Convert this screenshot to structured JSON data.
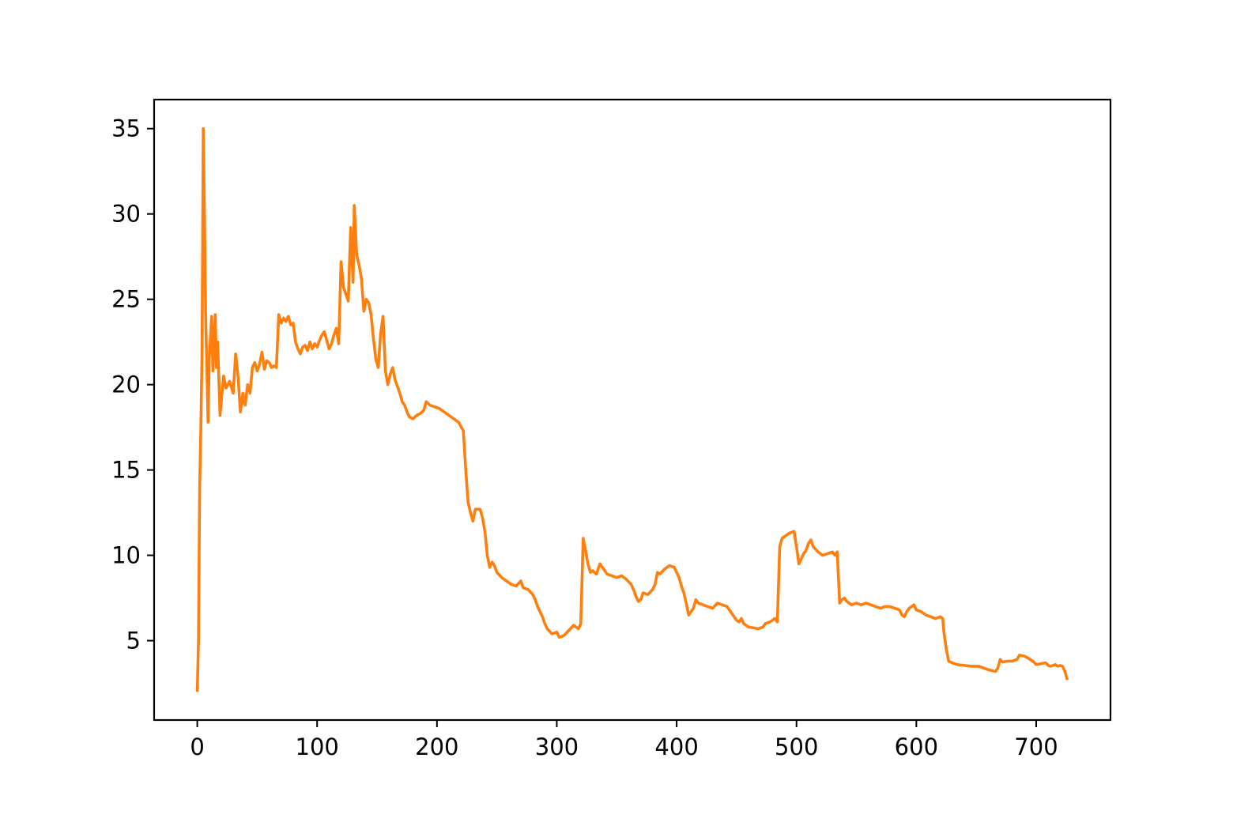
{
  "chart_data": {
    "type": "line",
    "title": "",
    "xlabel": "",
    "ylabel": "",
    "xlim": [
      -36,
      762
    ],
    "ylim": [
      0.35,
      36.7
    ],
    "grid": false,
    "legend": "none",
    "x_ticks": [
      0,
      100,
      200,
      300,
      400,
      500,
      600,
      700
    ],
    "y_ticks": [
      5,
      10,
      15,
      20,
      25,
      30,
      35
    ],
    "x_tick_labels": [
      "0",
      "100",
      "200",
      "300",
      "400",
      "500",
      "600",
      "700"
    ],
    "y_tick_labels": [
      "5",
      "10",
      "15",
      "20",
      "25",
      "30",
      "35"
    ],
    "series": [
      {
        "color": "#ff7f0e",
        "points": [
          [
            0,
            2.0
          ],
          [
            1,
            5.0
          ],
          [
            2,
            14.0
          ],
          [
            3,
            17.5
          ],
          [
            4,
            22.0
          ],
          [
            5,
            35.0
          ],
          [
            6,
            30.0
          ],
          [
            7,
            24.0
          ],
          [
            8,
            21.0
          ],
          [
            9,
            17.8
          ],
          [
            10,
            21.5
          ],
          [
            12,
            24.0
          ],
          [
            13,
            20.8
          ],
          [
            15,
            24.1
          ],
          [
            16,
            21.0
          ],
          [
            17,
            22.5
          ],
          [
            19,
            18.2
          ],
          [
            20,
            19.0
          ],
          [
            22,
            20.5
          ],
          [
            24,
            19.8
          ],
          [
            27,
            20.2
          ],
          [
            30,
            19.5
          ],
          [
            32,
            21.8
          ],
          [
            34,
            20.5
          ],
          [
            36,
            18.4
          ],
          [
            38,
            19.5
          ],
          [
            40,
            18.8
          ],
          [
            42,
            20.0
          ],
          [
            44,
            19.5
          ],
          [
            46,
            21.0
          ],
          [
            48,
            21.3
          ],
          [
            50,
            20.8
          ],
          [
            52,
            21.2
          ],
          [
            54,
            21.9
          ],
          [
            56,
            20.9
          ],
          [
            58,
            21.4
          ],
          [
            60,
            21.3
          ],
          [
            62,
            21.0
          ],
          [
            64,
            21.1
          ],
          [
            66,
            21.0
          ],
          [
            68,
            24.1
          ],
          [
            70,
            23.6
          ],
          [
            72,
            23.9
          ],
          [
            74,
            23.7
          ],
          [
            76,
            24.0
          ],
          [
            78,
            23.5
          ],
          [
            80,
            23.6
          ],
          [
            82,
            22.5
          ],
          [
            84,
            22.1
          ],
          [
            86,
            21.8
          ],
          [
            88,
            22.2
          ],
          [
            90,
            22.3
          ],
          [
            92,
            22.0
          ],
          [
            94,
            22.5
          ],
          [
            96,
            22.1
          ],
          [
            98,
            22.4
          ],
          [
            100,
            22.2
          ],
          [
            102,
            22.6
          ],
          [
            104,
            22.9
          ],
          [
            106,
            23.1
          ],
          [
            108,
            22.6
          ],
          [
            110,
            22.1
          ],
          [
            112,
            22.4
          ],
          [
            114,
            22.9
          ],
          [
            116,
            23.3
          ],
          [
            118,
            22.4
          ],
          [
            120,
            27.2
          ],
          [
            122,
            25.7
          ],
          [
            124,
            25.3
          ],
          [
            126,
            24.9
          ],
          [
            128,
            29.2
          ],
          [
            130,
            26.0
          ],
          [
            131,
            30.5
          ],
          [
            133,
            27.6
          ],
          [
            135,
            27.0
          ],
          [
            137,
            26.2
          ],
          [
            139,
            24.3
          ],
          [
            141,
            25.0
          ],
          [
            143,
            24.8
          ],
          [
            145,
            24.1
          ],
          [
            147,
            22.7
          ],
          [
            149,
            21.5
          ],
          [
            151,
            21.0
          ],
          [
            153,
            23.0
          ],
          [
            155,
            24.0
          ],
          [
            157,
            20.8
          ],
          [
            159,
            20.0
          ],
          [
            161,
            20.6
          ],
          [
            163,
            21.0
          ],
          [
            165,
            20.3
          ],
          [
            167,
            19.9
          ],
          [
            169,
            19.5
          ],
          [
            171,
            19.0
          ],
          [
            173,
            18.8
          ],
          [
            175,
            18.4
          ],
          [
            177,
            18.1
          ],
          [
            180,
            18.0
          ],
          [
            183,
            18.2
          ],
          [
            186,
            18.3
          ],
          [
            189,
            18.5
          ],
          [
            191,
            19.0
          ],
          [
            194,
            18.8
          ],
          [
            198,
            18.7
          ],
          [
            202,
            18.6
          ],
          [
            206,
            18.4
          ],
          [
            210,
            18.2
          ],
          [
            214,
            18.0
          ],
          [
            218,
            17.8
          ],
          [
            222,
            17.3
          ],
          [
            224,
            15.0
          ],
          [
            226,
            13.1
          ],
          [
            228,
            12.5
          ],
          [
            230,
            12.0
          ],
          [
            232,
            12.7
          ],
          [
            236,
            12.7
          ],
          [
            238,
            12.2
          ],
          [
            240,
            11.4
          ],
          [
            242,
            10.0
          ],
          [
            244,
            9.3
          ],
          [
            246,
            9.6
          ],
          [
            248,
            9.4
          ],
          [
            250,
            9.0
          ],
          [
            254,
            8.7
          ],
          [
            258,
            8.5
          ],
          [
            262,
            8.3
          ],
          [
            266,
            8.2
          ],
          [
            270,
            8.5
          ],
          [
            272,
            8.1
          ],
          [
            276,
            8.0
          ],
          [
            280,
            7.7
          ],
          [
            282,
            7.4
          ],
          [
            284,
            7.0
          ],
          [
            288,
            6.4
          ],
          [
            290,
            6.0
          ],
          [
            292,
            5.7
          ],
          [
            296,
            5.4
          ],
          [
            300,
            5.5
          ],
          [
            302,
            5.2
          ],
          [
            306,
            5.3
          ],
          [
            310,
            5.6
          ],
          [
            314,
            5.9
          ],
          [
            318,
            5.7
          ],
          [
            320,
            6.0
          ],
          [
            322,
            11.0
          ],
          [
            324,
            10.3
          ],
          [
            326,
            9.5
          ],
          [
            328,
            9.0
          ],
          [
            330,
            9.1
          ],
          [
            333,
            8.9
          ],
          [
            336,
            9.5
          ],
          [
            338,
            9.3
          ],
          [
            342,
            8.9
          ],
          [
            346,
            8.8
          ],
          [
            350,
            8.7
          ],
          [
            354,
            8.8
          ],
          [
            358,
            8.6
          ],
          [
            362,
            8.3
          ],
          [
            364,
            8.0
          ],
          [
            366,
            7.6
          ],
          [
            368,
            7.3
          ],
          [
            370,
            7.4
          ],
          [
            372,
            7.8
          ],
          [
            376,
            7.7
          ],
          [
            380,
            8.0
          ],
          [
            382,
            8.3
          ],
          [
            384,
            9.0
          ],
          [
            386,
            8.9
          ],
          [
            390,
            9.2
          ],
          [
            394,
            9.4
          ],
          [
            398,
            9.3
          ],
          [
            400,
            9.0
          ],
          [
            402,
            8.7
          ],
          [
            404,
            8.2
          ],
          [
            406,
            7.8
          ],
          [
            408,
            7.2
          ],
          [
            410,
            6.5
          ],
          [
            412,
            6.7
          ],
          [
            414,
            6.9
          ],
          [
            416,
            7.4
          ],
          [
            418,
            7.2
          ],
          [
            422,
            7.1
          ],
          [
            426,
            7.0
          ],
          [
            430,
            6.9
          ],
          [
            434,
            7.2
          ],
          [
            438,
            7.1
          ],
          [
            442,
            7.0
          ],
          [
            444,
            6.8
          ],
          [
            446,
            6.6
          ],
          [
            448,
            6.4
          ],
          [
            450,
            6.2
          ],
          [
            452,
            6.1
          ],
          [
            454,
            6.3
          ],
          [
            456,
            6.0
          ],
          [
            460,
            5.8
          ],
          [
            464,
            5.75
          ],
          [
            468,
            5.7
          ],
          [
            472,
            5.8
          ],
          [
            474,
            6.0
          ],
          [
            478,
            6.1
          ],
          [
            482,
            6.3
          ],
          [
            484,
            6.1
          ],
          [
            486,
            10.5
          ],
          [
            488,
            11.0
          ],
          [
            490,
            11.1
          ],
          [
            494,
            11.3
          ],
          [
            498,
            11.4
          ],
          [
            500,
            10.5
          ],
          [
            502,
            9.5
          ],
          [
            504,
            9.8
          ],
          [
            506,
            10.1
          ],
          [
            508,
            10.3
          ],
          [
            510,
            10.7
          ],
          [
            512,
            10.9
          ],
          [
            514,
            10.5
          ],
          [
            518,
            10.2
          ],
          [
            522,
            10.0
          ],
          [
            526,
            10.1
          ],
          [
            530,
            10.2
          ],
          [
            532,
            10.0
          ],
          [
            534,
            10.2
          ],
          [
            536,
            7.2
          ],
          [
            538,
            7.4
          ],
          [
            540,
            7.5
          ],
          [
            542,
            7.3
          ],
          [
            546,
            7.1
          ],
          [
            550,
            7.2
          ],
          [
            554,
            7.1
          ],
          [
            558,
            7.2
          ],
          [
            562,
            7.1
          ],
          [
            566,
            7.0
          ],
          [
            570,
            6.9
          ],
          [
            574,
            7.0
          ],
          [
            578,
            7.0
          ],
          [
            582,
            6.9
          ],
          [
            586,
            6.8
          ],
          [
            588,
            6.5
          ],
          [
            590,
            6.4
          ],
          [
            592,
            6.7
          ],
          [
            594,
            6.9
          ],
          [
            596,
            7.0
          ],
          [
            598,
            7.1
          ],
          [
            600,
            6.8
          ],
          [
            604,
            6.7
          ],
          [
            608,
            6.5
          ],
          [
            612,
            6.4
          ],
          [
            616,
            6.3
          ],
          [
            620,
            6.4
          ],
          [
            622,
            6.3
          ],
          [
            623,
            5.5
          ],
          [
            625,
            4.5
          ],
          [
            627,
            3.8
          ],
          [
            630,
            3.7
          ],
          [
            634,
            3.6
          ],
          [
            640,
            3.55
          ],
          [
            646,
            3.5
          ],
          [
            652,
            3.5
          ],
          [
            656,
            3.4
          ],
          [
            660,
            3.3
          ],
          [
            666,
            3.2
          ],
          [
            668,
            3.4
          ],
          [
            670,
            3.9
          ],
          [
            672,
            3.75
          ],
          [
            676,
            3.8
          ],
          [
            680,
            3.8
          ],
          [
            684,
            3.9
          ],
          [
            686,
            4.15
          ],
          [
            690,
            4.1
          ],
          [
            694,
            3.95
          ],
          [
            698,
            3.75
          ],
          [
            700,
            3.6
          ],
          [
            704,
            3.65
          ],
          [
            708,
            3.7
          ],
          [
            710,
            3.55
          ],
          [
            712,
            3.5
          ],
          [
            716,
            3.6
          ],
          [
            718,
            3.5
          ],
          [
            720,
            3.55
          ],
          [
            722,
            3.5
          ],
          [
            724,
            3.2
          ],
          [
            726,
            2.7
          ]
        ]
      }
    ]
  }
}
